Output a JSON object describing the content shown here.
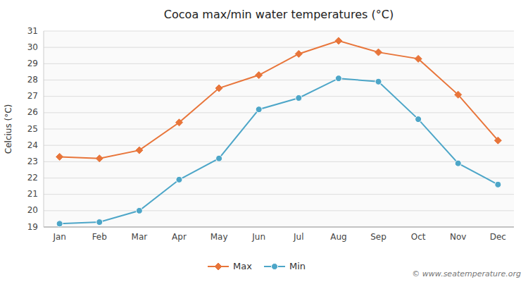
{
  "chart_data": {
    "type": "line",
    "title": "Cocoa max/min water temperatures (°C)",
    "ylabel": "Celcius (°C)",
    "categories": [
      "Jan",
      "Feb",
      "Mar",
      "Apr",
      "May",
      "Jun",
      "Jul",
      "Aug",
      "Sep",
      "Oct",
      "Nov",
      "Dec"
    ],
    "series": [
      {
        "name": "Max",
        "color": "#e8753a",
        "marker": "diamond",
        "line_style": "solid",
        "values": [
          23.3,
          23.2,
          23.7,
          25.4,
          27.5,
          28.3,
          29.6,
          30.4,
          29.7,
          29.3,
          27.1,
          24.3
        ]
      },
      {
        "name": "Min",
        "color": "#4da6c8",
        "marker": "circle",
        "line_style": "solid",
        "values": [
          19.2,
          19.3,
          20.0,
          21.9,
          23.2,
          26.2,
          26.9,
          28.1,
          27.9,
          25.6,
          22.9,
          21.6
        ]
      }
    ],
    "ylim": [
      19,
      31
    ],
    "yticks": [
      19,
      20,
      21,
      22,
      23,
      24,
      25,
      26,
      27,
      28,
      29,
      30,
      31
    ],
    "grid": true,
    "legend": "bottom",
    "annotations": [
      "© www.seatemperature.org"
    ]
  }
}
